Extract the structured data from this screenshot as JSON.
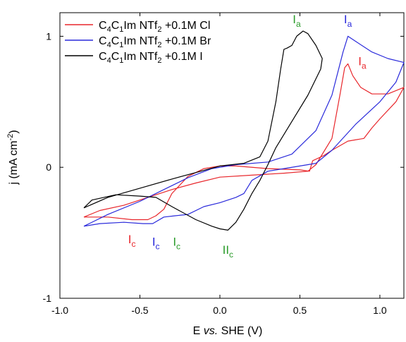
{
  "chart_data": {
    "type": "line",
    "xlabel": {
      "prefix": "E ",
      "italic": "vs.",
      "suffix": " SHE (V)"
    },
    "ylabel": {
      "main": "j (mA cm",
      "sup": "-2",
      "close": ")"
    },
    "xlim": [
      -1.0,
      1.15
    ],
    "ylim": [
      -1.0,
      1.18
    ],
    "xticks": [
      -1.0,
      -0.5,
      0.0,
      0.5,
      1.0
    ],
    "xtick_labels": [
      "-1.0",
      "-0.5",
      "0.0",
      "0.5",
      "1.0"
    ],
    "yticks": [
      -1,
      0,
      1
    ],
    "ytick_labels": [
      "-1",
      "0",
      "1"
    ],
    "grid": false,
    "legend_position": "top-left",
    "series": [
      {
        "name": {
          "base": "C4C1Im NTf2 +0.1M ",
          "anion": "Cl"
        },
        "color": "#e8262b",
        "points": [
          [
            -0.85,
            -0.38
          ],
          [
            -0.75,
            -0.33
          ],
          [
            -0.6,
            -0.29
          ],
          [
            -0.45,
            -0.23
          ],
          [
            -0.3,
            -0.17
          ],
          [
            -0.15,
            -0.12
          ],
          [
            0.0,
            -0.075
          ],
          [
            0.2,
            -0.06
          ],
          [
            0.4,
            -0.045
          ],
          [
            0.55,
            -0.03
          ],
          [
            0.6,
            0.02
          ],
          [
            0.7,
            0.22
          ],
          [
            0.75,
            0.55
          ],
          [
            0.78,
            0.76
          ],
          [
            0.8,
            0.79
          ],
          [
            0.83,
            0.7
          ],
          [
            0.88,
            0.61
          ],
          [
            0.95,
            0.56
          ],
          [
            1.05,
            0.56
          ],
          [
            1.15,
            0.61
          ],
          [
            1.1,
            0.5
          ],
          [
            1.0,
            0.37
          ],
          [
            0.95,
            0.3
          ],
          [
            0.9,
            0.22
          ],
          [
            0.8,
            0.2
          ],
          [
            0.7,
            0.13
          ],
          [
            0.65,
            0.09
          ],
          [
            0.58,
            0.05
          ],
          [
            0.56,
            -0.03
          ],
          [
            0.5,
            -0.02
          ],
          [
            0.3,
            -0.01
          ],
          [
            0.1,
            0.01
          ],
          [
            0.0,
            0.01
          ],
          [
            -0.1,
            -0.01
          ],
          [
            -0.2,
            -0.07
          ],
          [
            -0.3,
            -0.2
          ],
          [
            -0.35,
            -0.32
          ],
          [
            -0.4,
            -0.37
          ],
          [
            -0.45,
            -0.4
          ],
          [
            -0.55,
            -0.4
          ],
          [
            -0.7,
            -0.38
          ],
          [
            -0.85,
            -0.38
          ]
        ]
      },
      {
        "name": {
          "base": "C4C1Im NTf2 +0.1M ",
          "anion": "Br"
        },
        "color": "#2a2adb",
        "points": [
          [
            -0.85,
            -0.45
          ],
          [
            -0.7,
            -0.36
          ],
          [
            -0.5,
            -0.26
          ],
          [
            -0.35,
            -0.17
          ],
          [
            -0.2,
            -0.08
          ],
          [
            -0.05,
            -0.01
          ],
          [
            0.1,
            0.02
          ],
          [
            0.3,
            0.04
          ],
          [
            0.45,
            0.1
          ],
          [
            0.6,
            0.28
          ],
          [
            0.7,
            0.55
          ],
          [
            0.77,
            0.88
          ],
          [
            0.8,
            1.0
          ],
          [
            0.85,
            0.96
          ],
          [
            0.95,
            0.88
          ],
          [
            1.05,
            0.83
          ],
          [
            1.15,
            0.8
          ],
          [
            1.1,
            0.65
          ],
          [
            1.0,
            0.5
          ],
          [
            0.85,
            0.33
          ],
          [
            0.7,
            0.13
          ],
          [
            0.6,
            0.03
          ],
          [
            0.5,
            0.01
          ],
          [
            0.4,
            -0.01
          ],
          [
            0.3,
            -0.03
          ],
          [
            0.2,
            -0.1
          ],
          [
            0.15,
            -0.2
          ],
          [
            0.1,
            -0.23
          ],
          [
            0.0,
            -0.27
          ],
          [
            -0.1,
            -0.3
          ],
          [
            -0.2,
            -0.36
          ],
          [
            -0.28,
            -0.37
          ],
          [
            -0.35,
            -0.38
          ],
          [
            -0.42,
            -0.43
          ],
          [
            -0.48,
            -0.43
          ],
          [
            -0.6,
            -0.42
          ],
          [
            -0.75,
            -0.43
          ],
          [
            -0.85,
            -0.45
          ]
        ]
      },
      {
        "name": {
          "base": "C4C1Im NTf2 +0.1M ",
          "anion": "I"
        },
        "color": "#000000",
        "points": [
          [
            -0.85,
            -0.31
          ],
          [
            -0.7,
            -0.23
          ],
          [
            -0.5,
            -0.16
          ],
          [
            -0.3,
            -0.09
          ],
          [
            -0.15,
            -0.04
          ],
          [
            0.0,
            0.01
          ],
          [
            0.15,
            0.03
          ],
          [
            0.25,
            0.08
          ],
          [
            0.3,
            0.2
          ],
          [
            0.35,
            0.5
          ],
          [
            0.38,
            0.75
          ],
          [
            0.4,
            0.9
          ],
          [
            0.42,
            0.91
          ],
          [
            0.45,
            0.93
          ],
          [
            0.48,
            1.0
          ],
          [
            0.52,
            1.04
          ],
          [
            0.55,
            1.02
          ],
          [
            0.6,
            0.93
          ],
          [
            0.64,
            0.83
          ],
          [
            0.63,
            0.75
          ],
          [
            0.55,
            0.55
          ],
          [
            0.45,
            0.35
          ],
          [
            0.35,
            0.15
          ],
          [
            0.3,
            0.02
          ],
          [
            0.25,
            -0.1
          ],
          [
            0.2,
            -0.2
          ],
          [
            0.15,
            -0.32
          ],
          [
            0.1,
            -0.42
          ],
          [
            0.05,
            -0.48
          ],
          [
            0.0,
            -0.47
          ],
          [
            -0.05,
            -0.45
          ],
          [
            -0.15,
            -0.4
          ],
          [
            -0.3,
            -0.3
          ],
          [
            -0.4,
            -0.23
          ],
          [
            -0.5,
            -0.22
          ],
          [
            -0.65,
            -0.21
          ],
          [
            -0.8,
            -0.25
          ],
          [
            -0.85,
            -0.31
          ]
        ]
      }
    ],
    "annotations": [
      {
        "main": "I",
        "sub": "a",
        "color": "#2a9b2a",
        "x": 0.48,
        "y": 1.1
      },
      {
        "main": "I",
        "sub": "a",
        "color": "#2a2adb",
        "x": 0.8,
        "y": 1.1
      },
      {
        "main": "I",
        "sub": "a",
        "color": "#e8262b",
        "x": 0.89,
        "y": 0.78
      },
      {
        "main": "I",
        "sub": "c",
        "color": "#e8262b",
        "x": -0.55,
        "y": -0.58
      },
      {
        "main": "I",
        "sub": "c",
        "color": "#2a2adb",
        "x": -0.4,
        "y": -0.6
      },
      {
        "main": "I",
        "sub": "c",
        "color": "#2a9b2a",
        "x": -0.27,
        "y": -0.6
      },
      {
        "main": "II",
        "sub": "c",
        "color": "#2a9b2a",
        "x": 0.05,
        "y": -0.66
      }
    ]
  }
}
